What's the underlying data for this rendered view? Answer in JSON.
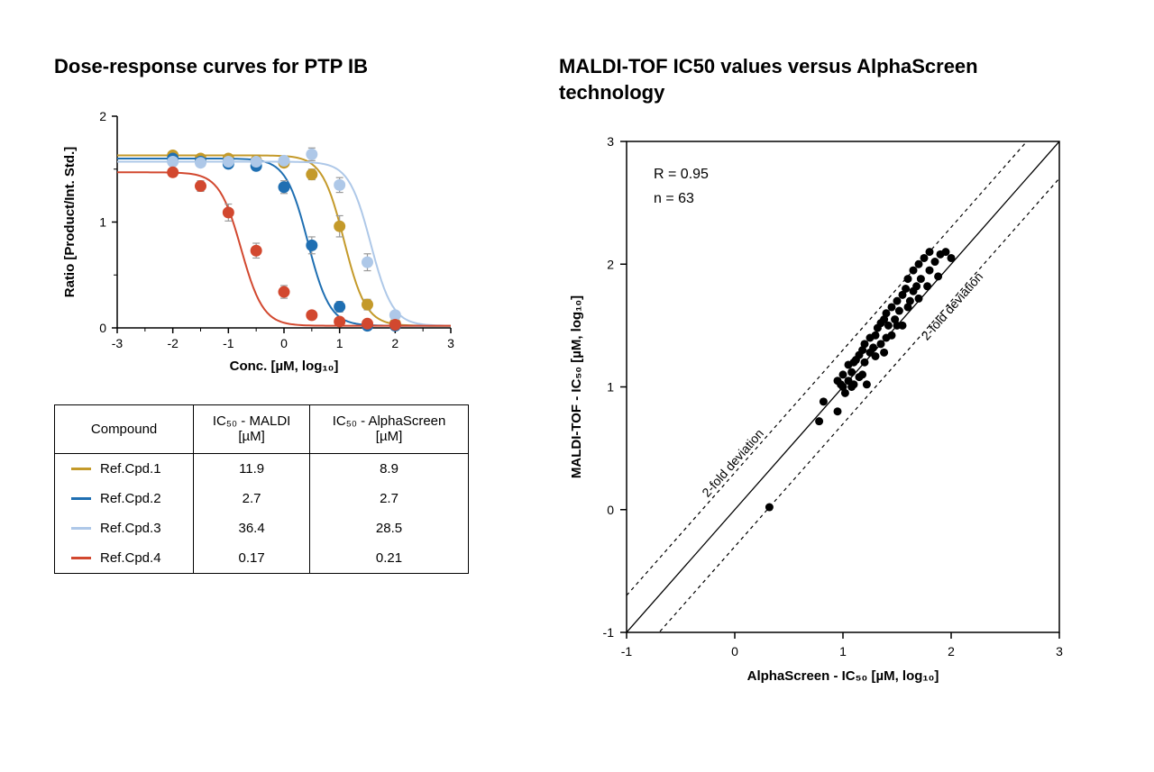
{
  "left": {
    "title": "Dose-response curves for PTP IB",
    "chart": {
      "type": "line",
      "xlabel": "Conc. [µM, log₁₀]",
      "ylabel": "Ratio [Product/Int. Std.]",
      "xlim": [
        -3,
        3
      ],
      "ylim": [
        0,
        2
      ],
      "xticks": [
        -3,
        -2,
        -1,
        0,
        1,
        2,
        3
      ],
      "yticks": [
        0,
        1,
        2
      ],
      "axis_color": "#000000",
      "tick_fontsize": 14,
      "label_fontsize": 15,
      "marker_radius": 6,
      "line_width": 2,
      "error_bar_color": "#999999",
      "series": [
        {
          "name": "Ref.Cpd.1",
          "color": "#c49a2a",
          "x": [
            -2.0,
            -1.5,
            -1.0,
            -0.5,
            0.0,
            0.5,
            1.0,
            1.5,
            2.0
          ],
          "y": [
            1.63,
            1.6,
            1.6,
            1.58,
            1.56,
            1.45,
            0.96,
            0.22,
            0.04
          ],
          "err": [
            0.03,
            0.03,
            0.03,
            0.04,
            0.04,
            0.05,
            0.1,
            0.05,
            0.02
          ],
          "logIC50": 1.08
        },
        {
          "name": "Ref.Cpd.2",
          "color": "#1f6fb2",
          "x": [
            -2.0,
            -1.5,
            -1.0,
            -0.5,
            0.0,
            0.5,
            1.0,
            1.5,
            2.0
          ],
          "y": [
            1.6,
            1.57,
            1.55,
            1.53,
            1.33,
            0.78,
            0.2,
            0.02,
            0.02
          ],
          "err": [
            0.03,
            0.03,
            0.03,
            0.04,
            0.06,
            0.08,
            0.05,
            0.02,
            0.02
          ],
          "logIC50": 0.43
        },
        {
          "name": "Ref.Cpd.3",
          "color": "#aec8e8",
          "x": [
            -2.0,
            -1.5,
            -1.0,
            -0.5,
            0.0,
            0.5,
            1.0,
            1.5,
            2.0
          ],
          "y": [
            1.57,
            1.56,
            1.57,
            1.57,
            1.58,
            1.64,
            1.35,
            0.62,
            0.12
          ],
          "err": [
            0.03,
            0.03,
            0.03,
            0.03,
            0.04,
            0.06,
            0.07,
            0.08,
            0.03
          ],
          "logIC50": 1.56
        },
        {
          "name": "Ref.Cpd.4",
          "color": "#d2482f",
          "x": [
            -2.0,
            -1.5,
            -1.0,
            -0.5,
            0.0,
            0.5,
            1.0,
            1.5,
            2.0
          ],
          "y": [
            1.47,
            1.34,
            1.09,
            0.73,
            0.34,
            0.12,
            0.06,
            0.04,
            0.03
          ],
          "err": [
            0.04,
            0.05,
            0.08,
            0.07,
            0.06,
            0.04,
            0.02,
            0.02,
            0.02
          ],
          "logIC50": -0.77
        }
      ]
    },
    "table": {
      "columns": [
        "Compound",
        "IC₅₀ - MALDI [µM]",
        "IC₅₀ - AlphaScreen [µM]"
      ],
      "rows": [
        {
          "swatch": "#c49a2a",
          "cpd": "Ref.Cpd.1",
          "maldi": "11.9",
          "alpha": "8.9"
        },
        {
          "swatch": "#1f6fb2",
          "cpd": "Ref.Cpd.2",
          "maldi": "2.7",
          "alpha": "2.7"
        },
        {
          "swatch": "#aec8e8",
          "cpd": "Ref.Cpd.3",
          "maldi": "36.4",
          "alpha": "28.5"
        },
        {
          "swatch": "#d2482f",
          "cpd": "Ref.Cpd.4",
          "maldi": "0.17",
          "alpha": "0.21"
        }
      ]
    }
  },
  "right": {
    "title": "MALDI-TOF IC50 values versus AlphaScreen technology",
    "chart": {
      "type": "scatter",
      "xlabel": "AlphaScreen - IC₅₀ [µM, log₁₀]",
      "ylabel": "MALDI-TOF - IC₅₀ [µM, log₁₀]",
      "xlim": [
        -1,
        3
      ],
      "ylim": [
        -1,
        3
      ],
      "xticks": [
        -1,
        0,
        1,
        2,
        3
      ],
      "yticks": [
        -1,
        0,
        1,
        2,
        3
      ],
      "axis_color": "#000000",
      "marker_color": "#000000",
      "marker_radius": 4.5,
      "identity_line_color": "#000000",
      "deviation_line_color": "#000000",
      "deviation_dash": "4,4",
      "deviation_offset_log": 0.301,
      "deviation_label": "2-fold deviation",
      "annotations": {
        "R_label": "R = 0.95",
        "n_label": "n = 63"
      },
      "points": [
        [
          0.32,
          0.02
        ],
        [
          0.78,
          0.72
        ],
        [
          0.82,
          0.88
        ],
        [
          0.95,
          1.05
        ],
        [
          0.95,
          0.8
        ],
        [
          0.98,
          1.02
        ],
        [
          1.0,
          1.1
        ],
        [
          1.0,
          1.0
        ],
        [
          1.02,
          0.95
        ],
        [
          1.05,
          1.05
        ],
        [
          1.05,
          1.18
        ],
        [
          1.08,
          1.0
        ],
        [
          1.08,
          1.12
        ],
        [
          1.1,
          1.02
        ],
        [
          1.1,
          1.2
        ],
        [
          1.12,
          1.22
        ],
        [
          1.15,
          1.08
        ],
        [
          1.15,
          1.26
        ],
        [
          1.18,
          1.1
        ],
        [
          1.18,
          1.3
        ],
        [
          1.2,
          1.2
        ],
        [
          1.2,
          1.35
        ],
        [
          1.22,
          1.02
        ],
        [
          1.25,
          1.28
        ],
        [
          1.25,
          1.4
        ],
        [
          1.28,
          1.32
        ],
        [
          1.3,
          1.25
        ],
        [
          1.3,
          1.42
        ],
        [
          1.32,
          1.48
        ],
        [
          1.35,
          1.35
        ],
        [
          1.35,
          1.52
        ],
        [
          1.38,
          1.28
        ],
        [
          1.38,
          1.55
        ],
        [
          1.4,
          1.4
        ],
        [
          1.4,
          1.6
        ],
        [
          1.42,
          1.5
        ],
        [
          1.45,
          1.42
        ],
        [
          1.45,
          1.65
        ],
        [
          1.48,
          1.55
        ],
        [
          1.5,
          1.5
        ],
        [
          1.5,
          1.7
        ],
        [
          1.52,
          1.62
        ],
        [
          1.55,
          1.75
        ],
        [
          1.55,
          1.5
        ],
        [
          1.58,
          1.8
        ],
        [
          1.6,
          1.65
        ],
        [
          1.6,
          1.88
        ],
        [
          1.62,
          1.7
        ],
        [
          1.65,
          1.78
        ],
        [
          1.65,
          1.95
        ],
        [
          1.68,
          1.82
        ],
        [
          1.7,
          1.72
        ],
        [
          1.7,
          2.0
        ],
        [
          1.72,
          1.88
        ],
        [
          1.75,
          2.05
        ],
        [
          1.78,
          1.82
        ],
        [
          1.8,
          1.95
        ],
        [
          1.8,
          2.1
        ],
        [
          1.85,
          2.02
        ],
        [
          1.88,
          1.9
        ],
        [
          1.9,
          2.08
        ],
        [
          1.95,
          2.1
        ],
        [
          2.0,
          2.05
        ]
      ]
    }
  }
}
